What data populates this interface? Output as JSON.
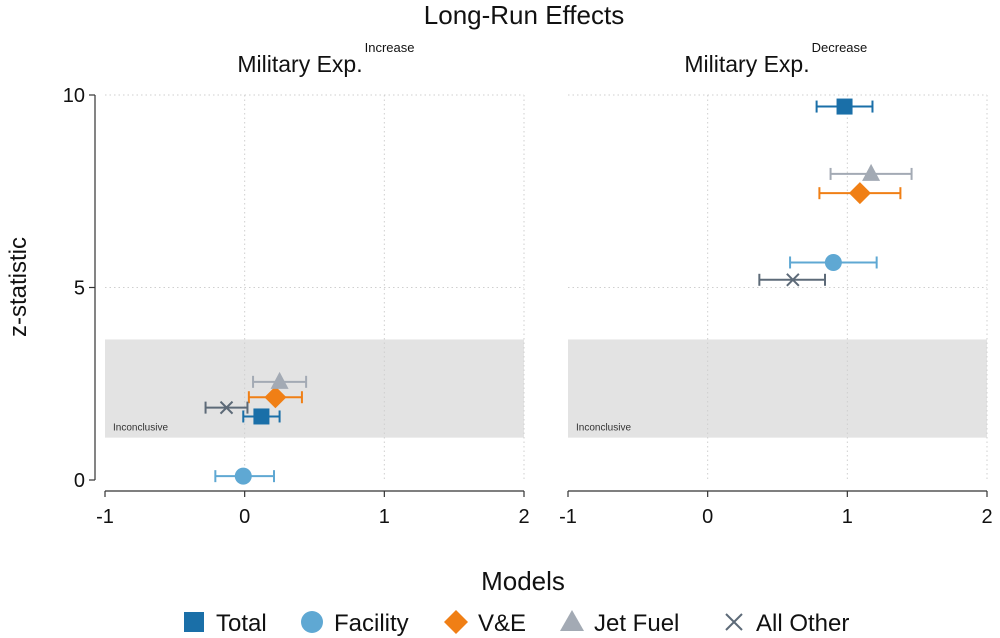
{
  "chart_data": {
    "type": "scatter",
    "title": "Long-Run Effects",
    "ylabel": "z-statistic",
    "xlim": [
      -1,
      2
    ],
    "ylim": [
      0,
      10
    ],
    "x_ticks": [
      "-1",
      "0",
      "1",
      "2"
    ],
    "y_ticks": [
      "0",
      "5",
      "10"
    ],
    "band": {
      "label": "Inconclusive",
      "y_from": 1.1,
      "y_to": 3.65
    },
    "legend": {
      "title": "Models",
      "position": "bottom"
    },
    "series_styles": [
      {
        "name": "Total",
        "marker": "square",
        "color": "#1a6fa8",
        "bar_color": "#1a6fa8"
      },
      {
        "name": "Facility",
        "marker": "circle",
        "color": "#5fa8d3",
        "bar_color": "#5fa8d3"
      },
      {
        "name": "V&E",
        "marker": "diamond",
        "color": "#f07f15",
        "bar_color": "#f07f15"
      },
      {
        "name": "Jet Fuel",
        "marker": "triangle",
        "color": "#a3aab4",
        "bar_color": "#a3aab4"
      },
      {
        "name": "All Other",
        "marker": "x",
        "color": "#5d6a78",
        "bar_color": "#5d6a78"
      }
    ],
    "panels": [
      {
        "subtitle": "Military Exp.",
        "superscript": "Increase",
        "points": [
          {
            "series": "Total",
            "x": 0.12,
            "y": 1.65,
            "lo": -0.01,
            "hi": 0.25
          },
          {
            "series": "Facility",
            "x": -0.01,
            "y": 0.1,
            "lo": -0.21,
            "hi": 0.21
          },
          {
            "series": "V&E",
            "x": 0.22,
            "y": 2.15,
            "lo": 0.03,
            "hi": 0.41
          },
          {
            "series": "Jet Fuel",
            "x": 0.25,
            "y": 2.55,
            "lo": 0.06,
            "hi": 0.44
          },
          {
            "series": "All Other",
            "x": -0.13,
            "y": 1.88,
            "lo": -0.28,
            "hi": 0.02
          }
        ]
      },
      {
        "subtitle": "Military Exp.",
        "superscript": "Decrease",
        "points": [
          {
            "series": "Total",
            "x": 0.98,
            "y": 9.7,
            "lo": 0.78,
            "hi": 1.18
          },
          {
            "series": "Facility",
            "x": 0.9,
            "y": 5.65,
            "lo": 0.59,
            "hi": 1.21
          },
          {
            "series": "V&E",
            "x": 1.09,
            "y": 7.45,
            "lo": 0.8,
            "hi": 1.38
          },
          {
            "series": "Jet Fuel",
            "x": 1.17,
            "y": 7.95,
            "lo": 0.88,
            "hi": 1.46
          },
          {
            "series": "All Other",
            "x": 0.61,
            "y": 5.2,
            "lo": 0.37,
            "hi": 0.84
          }
        ]
      }
    ]
  }
}
